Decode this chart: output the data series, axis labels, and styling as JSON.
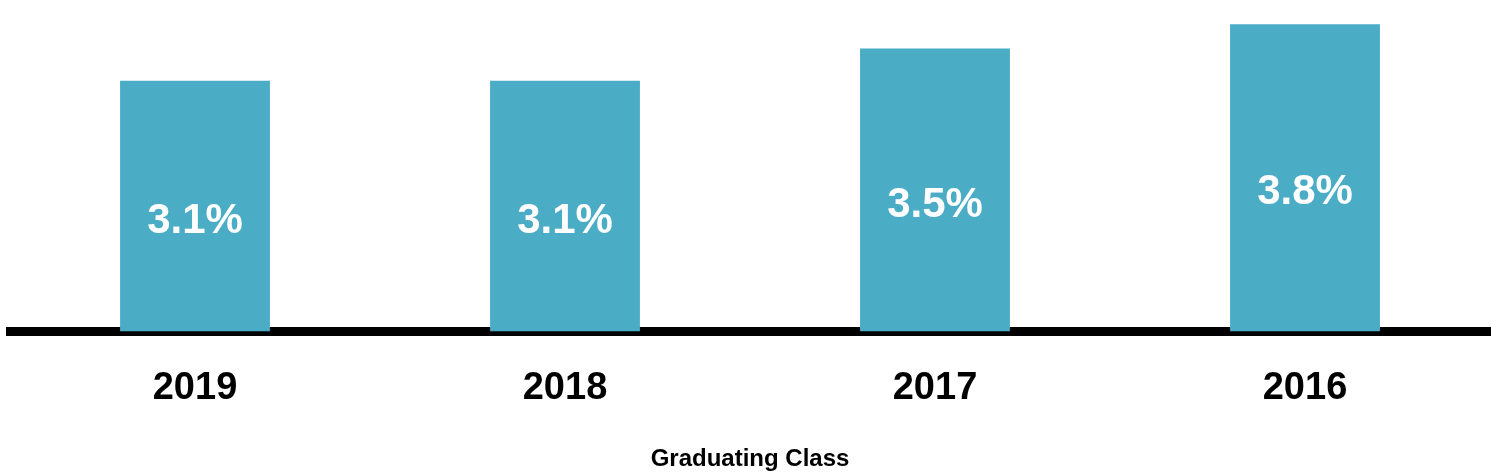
{
  "chart_data": {
    "type": "bar",
    "xlabel": "Graduating Class",
    "categories": [
      "2019",
      "2018",
      "2017",
      "2016"
    ],
    "values": [
      3.1,
      3.1,
      3.5,
      3.8
    ],
    "color": "#4bacc6",
    "value_labels": [
      "3.1%",
      "3.1%",
      "3.5%",
      "3.8%"
    ],
    "tick_labels": "x",
    "grid": false,
    "legend": false
  }
}
